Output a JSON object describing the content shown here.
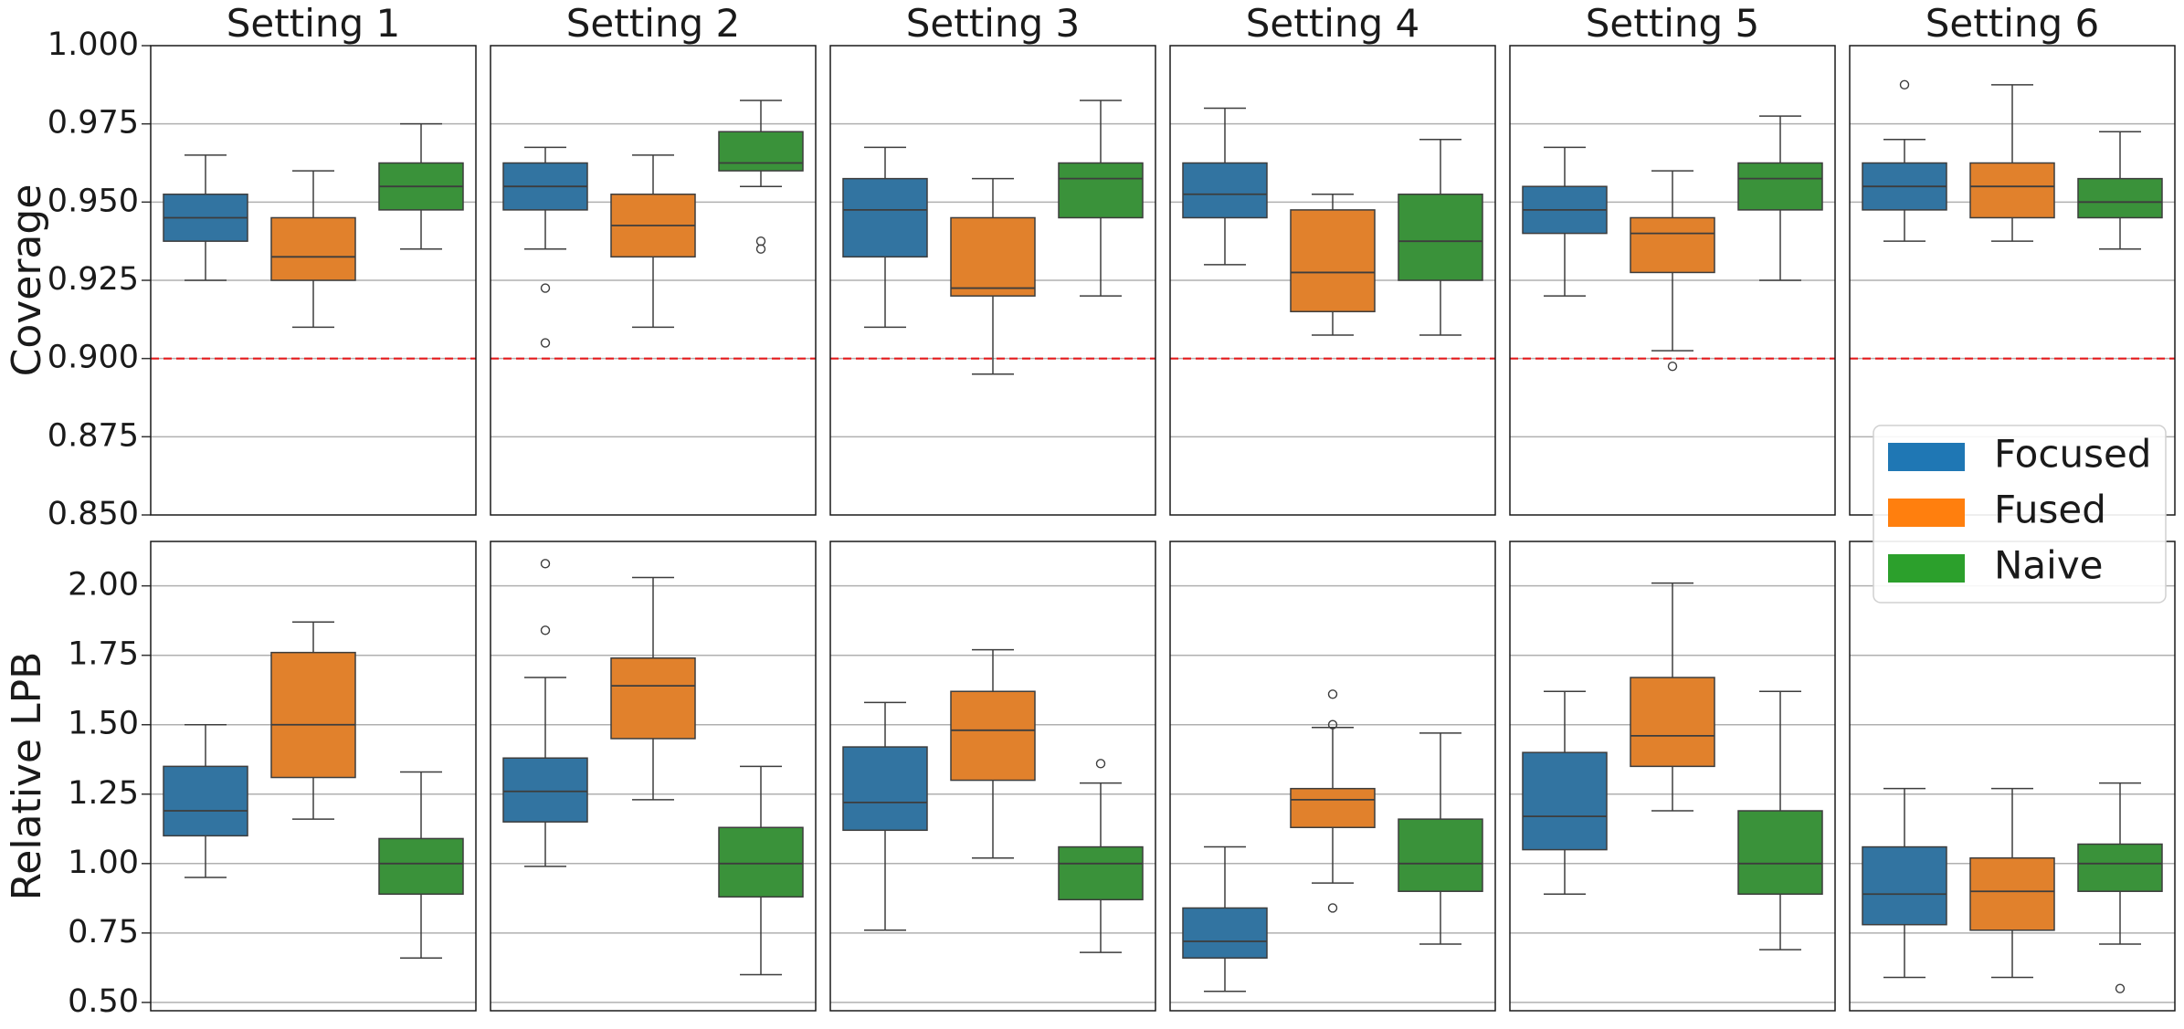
{
  "legend": {
    "placement": "right, spanning lower-right of top row and upper-right of bottom row",
    "entries": [
      {
        "label": "Focused",
        "color": "#1f77b4"
      },
      {
        "label": "Fused",
        "color": "#ff7f0e"
      },
      {
        "label": "Naive",
        "color": "#2ca02c"
      }
    ]
  },
  "chart_data": [
    {
      "type": "boxplot",
      "row": "top",
      "ylabel": "Coverage",
      "ylim": [
        0.85,
        1.0
      ],
      "yticks": [
        "0.850",
        "0.875",
        "0.900",
        "0.925",
        "0.950",
        "0.975",
        "1.000"
      ],
      "ytick_values": [
        0.85,
        0.875,
        0.9,
        0.925,
        0.95,
        0.975,
        1.0
      ],
      "grid": "horizontal",
      "reference_line": {
        "y": 0.9,
        "style": "dashed",
        "color": "#e41a1c"
      },
      "categories": [
        "Focused",
        "Fused",
        "Naive"
      ],
      "panels": [
        {
          "title": "Setting 1",
          "boxes": [
            {
              "series": "Focused",
              "low": 0.925,
              "q1": 0.9375,
              "median": 0.945,
              "q3": 0.9525,
              "high": 0.965,
              "outliers": []
            },
            {
              "series": "Fused",
              "low": 0.91,
              "q1": 0.925,
              "median": 0.9325,
              "q3": 0.945,
              "high": 0.96,
              "outliers": []
            },
            {
              "series": "Naive",
              "low": 0.935,
              "q1": 0.9475,
              "median": 0.955,
              "q3": 0.9625,
              "high": 0.975,
              "outliers": []
            }
          ]
        },
        {
          "title": "Setting 2",
          "boxes": [
            {
              "series": "Focused",
              "low": 0.935,
              "q1": 0.9475,
              "median": 0.955,
              "q3": 0.9625,
              "high": 0.9675,
              "outliers": [
                0.9225,
                0.905
              ]
            },
            {
              "series": "Fused",
              "low": 0.91,
              "q1": 0.9325,
              "median": 0.9425,
              "q3": 0.9525,
              "high": 0.965,
              "outliers": []
            },
            {
              "series": "Naive",
              "low": 0.955,
              "q1": 0.96,
              "median": 0.9625,
              "q3": 0.9725,
              "high": 0.9825,
              "outliers": [
                0.9375,
                0.935
              ]
            }
          ]
        },
        {
          "title": "Setting 3",
          "boxes": [
            {
              "series": "Focused",
              "low": 0.91,
              "q1": 0.9325,
              "median": 0.9475,
              "q3": 0.9575,
              "high": 0.9675,
              "outliers": []
            },
            {
              "series": "Fused",
              "low": 0.895,
              "q1": 0.92,
              "median": 0.9225,
              "q3": 0.945,
              "high": 0.9575,
              "outliers": []
            },
            {
              "series": "Naive",
              "low": 0.92,
              "q1": 0.945,
              "median": 0.9575,
              "q3": 0.9625,
              "high": 0.9825,
              "outliers": []
            }
          ]
        },
        {
          "title": "Setting 4",
          "boxes": [
            {
              "series": "Focused",
              "low": 0.93,
              "q1": 0.945,
              "median": 0.9525,
              "q3": 0.9625,
              "high": 0.98,
              "outliers": []
            },
            {
              "series": "Fused",
              "low": 0.9075,
              "q1": 0.915,
              "median": 0.9275,
              "q3": 0.9475,
              "high": 0.9525,
              "outliers": []
            },
            {
              "series": "Naive",
              "low": 0.9075,
              "q1": 0.925,
              "median": 0.9375,
              "q3": 0.9525,
              "high": 0.97,
              "outliers": []
            }
          ]
        },
        {
          "title": "Setting 5",
          "boxes": [
            {
              "series": "Focused",
              "low": 0.92,
              "q1": 0.94,
              "median": 0.9475,
              "q3": 0.955,
              "high": 0.9675,
              "outliers": []
            },
            {
              "series": "Fused",
              "low": 0.9025,
              "q1": 0.9275,
              "median": 0.94,
              "q3": 0.945,
              "high": 0.96,
              "outliers": [
                0.8975
              ]
            },
            {
              "series": "Naive",
              "low": 0.925,
              "q1": 0.9475,
              "median": 0.9575,
              "q3": 0.9625,
              "high": 0.9775,
              "outliers": []
            }
          ]
        },
        {
          "title": "Setting 6",
          "boxes": [
            {
              "series": "Focused",
              "low": 0.9375,
              "q1": 0.9475,
              "median": 0.955,
              "q3": 0.9625,
              "high": 0.97,
              "outliers": [
                0.9875
              ]
            },
            {
              "series": "Fused",
              "low": 0.9375,
              "q1": 0.945,
              "median": 0.955,
              "q3": 0.9625,
              "high": 0.9875,
              "outliers": []
            },
            {
              "series": "Naive",
              "low": 0.935,
              "q1": 0.945,
              "median": 0.95,
              "q3": 0.9575,
              "high": 0.9725,
              "outliers": []
            }
          ]
        }
      ]
    },
    {
      "type": "boxplot",
      "row": "bottom",
      "ylabel": "Relative LPB",
      "ylim": [
        0.47,
        2.16
      ],
      "yticks": [
        "0.50",
        "0.75",
        "1.00",
        "1.25",
        "1.50",
        "1.75",
        "2.00"
      ],
      "ytick_values": [
        0.5,
        0.75,
        1.0,
        1.25,
        1.5,
        1.75,
        2.0
      ],
      "grid": "horizontal",
      "categories": [
        "Focused",
        "Fused",
        "Naive"
      ],
      "panels": [
        {
          "title": "Setting 1",
          "boxes": [
            {
              "series": "Focused",
              "low": 0.95,
              "q1": 1.1,
              "median": 1.19,
              "q3": 1.35,
              "high": 1.5,
              "outliers": []
            },
            {
              "series": "Fused",
              "low": 1.16,
              "q1": 1.31,
              "median": 1.5,
              "q3": 1.76,
              "high": 1.87,
              "outliers": []
            },
            {
              "series": "Naive",
              "low": 0.66,
              "q1": 0.89,
              "median": 1.0,
              "q3": 1.09,
              "high": 1.33,
              "outliers": []
            }
          ]
        },
        {
          "title": "Setting 2",
          "boxes": [
            {
              "series": "Focused",
              "low": 0.99,
              "q1": 1.15,
              "median": 1.26,
              "q3": 1.38,
              "high": 1.67,
              "outliers": [
                2.08,
                1.84
              ]
            },
            {
              "series": "Fused",
              "low": 1.23,
              "q1": 1.45,
              "median": 1.64,
              "q3": 1.74,
              "high": 2.03,
              "outliers": []
            },
            {
              "series": "Naive",
              "low": 0.6,
              "q1": 0.88,
              "median": 1.0,
              "q3": 1.13,
              "high": 1.35,
              "outliers": []
            }
          ]
        },
        {
          "title": "Setting 3",
          "boxes": [
            {
              "series": "Focused",
              "low": 0.76,
              "q1": 1.12,
              "median": 1.22,
              "q3": 1.42,
              "high": 1.58,
              "outliers": []
            },
            {
              "series": "Fused",
              "low": 1.02,
              "q1": 1.3,
              "median": 1.48,
              "q3": 1.62,
              "high": 1.77,
              "outliers": []
            },
            {
              "series": "Naive",
              "low": 0.68,
              "q1": 0.87,
              "median": 1.0,
              "q3": 1.06,
              "high": 1.29,
              "outliers": [
                1.36
              ]
            }
          ]
        },
        {
          "title": "Setting 4",
          "boxes": [
            {
              "series": "Focused",
              "low": 0.54,
              "q1": 0.66,
              "median": 0.72,
              "q3": 0.84,
              "high": 1.06,
              "outliers": []
            },
            {
              "series": "Fused",
              "low": 0.93,
              "q1": 1.13,
              "median": 1.23,
              "q3": 1.27,
              "high": 1.49,
              "outliers": [
                1.61,
                1.5,
                0.84
              ]
            },
            {
              "series": "Naive",
              "low": 0.71,
              "q1": 0.9,
              "median": 1.0,
              "q3": 1.16,
              "high": 1.47,
              "outliers": []
            }
          ]
        },
        {
          "title": "Setting 5",
          "boxes": [
            {
              "series": "Focused",
              "low": 0.89,
              "q1": 1.05,
              "median": 1.17,
              "q3": 1.4,
              "high": 1.62,
              "outliers": []
            },
            {
              "series": "Fused",
              "low": 1.19,
              "q1": 1.35,
              "median": 1.46,
              "q3": 1.67,
              "high": 2.01,
              "outliers": []
            },
            {
              "series": "Naive",
              "low": 0.69,
              "q1": 0.89,
              "median": 1.0,
              "q3": 1.19,
              "high": 1.62,
              "outliers": []
            }
          ]
        },
        {
          "title": "Setting 6",
          "boxes": [
            {
              "series": "Focused",
              "low": 0.59,
              "q1": 0.78,
              "median": 0.89,
              "q3": 1.06,
              "high": 1.27,
              "outliers": []
            },
            {
              "series": "Fused",
              "low": 0.59,
              "q1": 0.76,
              "median": 0.9,
              "q3": 1.02,
              "high": 1.27,
              "outliers": []
            },
            {
              "series": "Naive",
              "low": 0.71,
              "q1": 0.9,
              "median": 1.0,
              "q3": 1.07,
              "high": 1.29,
              "outliers": [
                0.55
              ]
            }
          ]
        }
      ]
    }
  ]
}
